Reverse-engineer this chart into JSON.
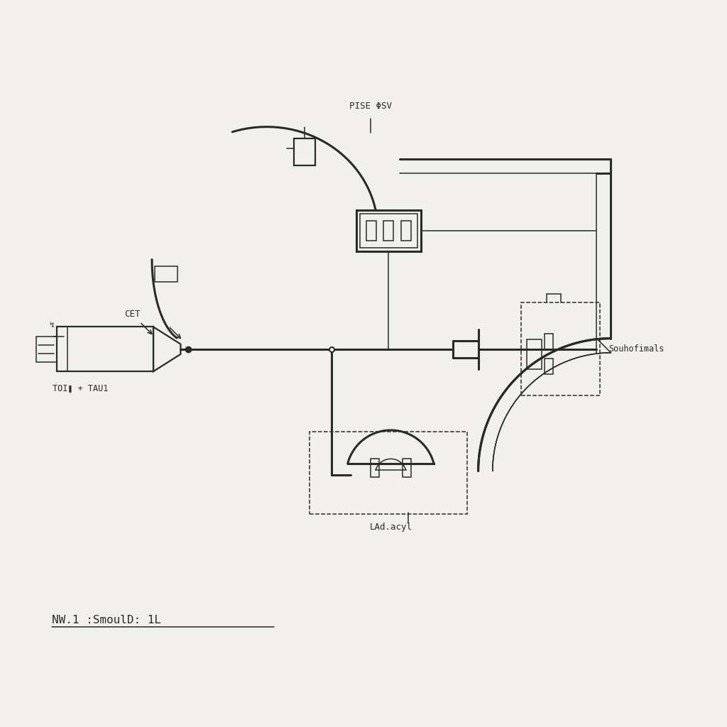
{
  "bg_color": "#f2f0ed",
  "line_color": "#2a2a2a",
  "title": "NW.1 :SmoulD: 1L",
  "label_pise": "PISE ΦSV",
  "label_cet": "CET",
  "label_toi": "TOI❚ + TAU1",
  "label_souhofim": "Souhofimals",
  "label_lad": "LAd.acyl",
  "lw": 1.6,
  "lw2": 2.2,
  "lw1": 1.1
}
